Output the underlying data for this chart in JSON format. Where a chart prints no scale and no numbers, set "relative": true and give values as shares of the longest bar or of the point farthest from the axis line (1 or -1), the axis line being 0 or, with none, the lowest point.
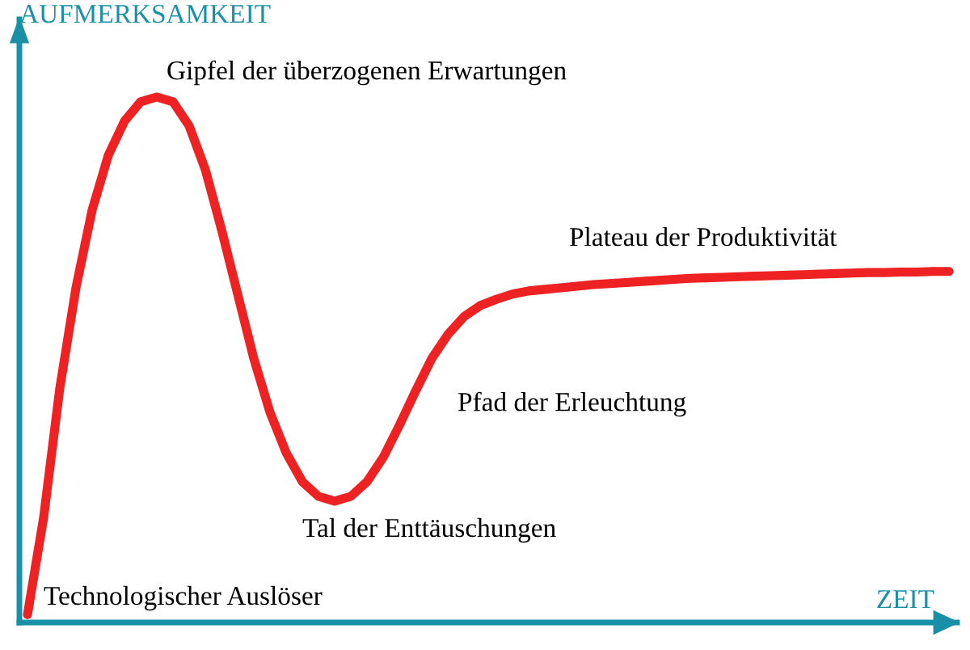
{
  "chart_data": {
    "type": "line",
    "relative": true,
    "xlabel": "ZEIT",
    "ylabel": "AUFMERKSAMKEIT",
    "categories": [
      null,
      null,
      null,
      null,
      null,
      null,
      null,
      null,
      null,
      null,
      null,
      null,
      null,
      null,
      null,
      null,
      null,
      null,
      null,
      null,
      null,
      null,
      null,
      null,
      null,
      null,
      null,
      null,
      null,
      null,
      null,
      null,
      null,
      null,
      null,
      null,
      null,
      null,
      null,
      null,
      null,
      null,
      null,
      null,
      null,
      null,
      null,
      null,
      null,
      null,
      null,
      null,
      null,
      null,
      null,
      null,
      null,
      null
    ],
    "series": [
      {
        "color": "#ee2222",
        "values": [
          0.015,
          0.2,
          0.446,
          0.637,
          0.785,
          0.889,
          0.954,
          0.991,
          1.0,
          0.991,
          0.945,
          0.862,
          0.748,
          0.625,
          0.502,
          0.4,
          0.323,
          0.268,
          0.24,
          0.231,
          0.24,
          0.268,
          0.314,
          0.375,
          0.44,
          0.502,
          0.548,
          0.582,
          0.603,
          0.615,
          0.625,
          0.631,
          0.634,
          0.637,
          0.64,
          0.643,
          0.645,
          0.647,
          0.649,
          0.651,
          0.653,
          0.655,
          0.656,
          0.657,
          0.658,
          0.659,
          0.66,
          0.661,
          0.662,
          0.663,
          0.664,
          0.665,
          0.666,
          0.666,
          0.667,
          0.667,
          0.668,
          0.668
        ]
      }
    ],
    "annotations": [
      "Gipfel der überzogenen Erwartungen",
      "Plateau der Produktivität",
      "Pfad der Erleuchtung",
      "Tal der Enttäuschungen",
      "Technologischer Auslöser"
    ],
    "legend": false
  }
}
